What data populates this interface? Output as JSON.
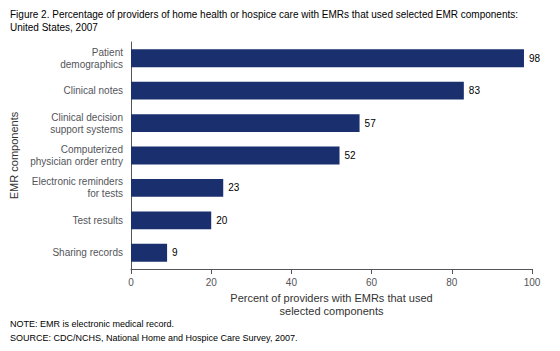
{
  "chart_data": {
    "type": "bar",
    "orientation": "horizontal",
    "title": "Figure 2. Percentage of providers of home health or hospice care with EMRs that used selected EMR components:",
    "subtitle": "United States, 2007",
    "categories": [
      "Sharing records",
      "Test results",
      "Electronic reminders\nfor tests",
      "Computerized\nphysician order entry",
      "Clinical decision\nsupport systems",
      "Clinical notes",
      "Patient\ndemographics"
    ],
    "values": [
      9,
      20,
      23,
      52,
      57,
      83,
      98
    ],
    "color": "#1a2f6e",
    "xlabel": "Percent of providers with EMRs that used\nselected components",
    "ylabel": "EMR components",
    "xlim": [
      0,
      100
    ],
    "xticks": [
      0,
      20,
      40,
      60,
      80,
      100
    ],
    "grid": false,
    "data_labels": true,
    "annotations": [
      "NOTE: EMR is electronic medical record.",
      "SOURCE: CDC/NCHS, National Home and Hospice Care Survey, 2007."
    ]
  }
}
